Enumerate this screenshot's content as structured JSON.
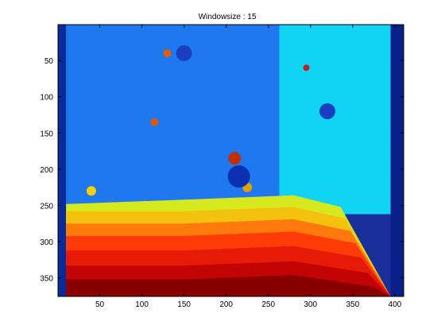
{
  "chart_data": {
    "type": "heatmap",
    "title": "Windowsize : 15",
    "xlabel": "",
    "ylabel": "",
    "colormap": "jet",
    "xlim": [
      0.5,
      410.5
    ],
    "ylim": [
      0.5,
      375.5
    ],
    "y_reversed": true,
    "x_ticks": [
      50,
      100,
      150,
      200,
      250,
      300,
      350,
      400
    ],
    "y_ticks": [
      50,
      100,
      150,
      200,
      250,
      300,
      350
    ],
    "x_tick_labels": [
      "50",
      "100",
      "150",
      "200",
      "250",
      "300",
      "350",
      "400"
    ],
    "y_tick_labels": [
      "50",
      "100",
      "150",
      "200",
      "250",
      "300",
      "350"
    ],
    "box": true,
    "grid": false,
    "regions": [
      {
        "name": "back-wall-left",
        "color": "#1f78f0",
        "x": [
          0.5,
          263
        ],
        "y": [
          0.5,
          252
        ]
      },
      {
        "name": "back-wall-right",
        "color": "#11d4f4",
        "x": [
          263,
          395
        ],
        "y": [
          0.5,
          262
        ]
      },
      {
        "name": "right-edge-band",
        "color": "#0a1f8a",
        "x": [
          395,
          410.5
        ],
        "y": [
          0.5,
          375.5
        ]
      },
      {
        "name": "top-left-band",
        "color": "#0a2a9a",
        "x": [
          0.5,
          10
        ],
        "y": [
          0.5,
          375.5
        ]
      }
    ],
    "floor_bands": [
      {
        "color": "#d6e91e",
        "y_top": 242
      },
      {
        "color": "#f4c20e",
        "y_top": 258
      },
      {
        "color": "#ff7a0c",
        "y_top": 275
      },
      {
        "color": "#ff3c08",
        "y_top": 292
      },
      {
        "color": "#e61a06",
        "y_top": 312
      },
      {
        "color": "#c20404",
        "y_top": 333
      },
      {
        "color": "#8a0000",
        "y_top": 352
      }
    ]
  }
}
